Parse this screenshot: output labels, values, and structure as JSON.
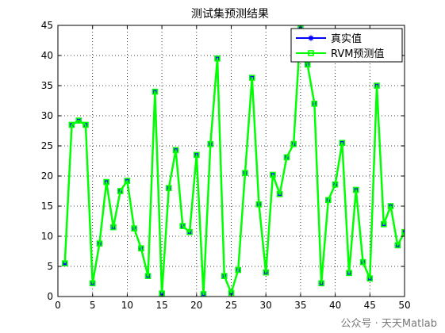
{
  "chart_data": {
    "type": "line",
    "title": "测试集预测结果",
    "xlabel": "",
    "ylabel": "",
    "xlim": [
      0,
      50
    ],
    "ylim": [
      0,
      45
    ],
    "xticks": [
      0,
      5,
      10,
      15,
      20,
      25,
      30,
      35,
      40,
      45,
      50
    ],
    "yticks": [
      0,
      5,
      10,
      15,
      20,
      25,
      30,
      35,
      40,
      45
    ],
    "grid": true,
    "legend_position": "top-right",
    "x": [
      1,
      2,
      3,
      4,
      5,
      6,
      7,
      8,
      9,
      10,
      11,
      12,
      13,
      14,
      15,
      16,
      17,
      18,
      19,
      20,
      21,
      22,
      23,
      24,
      25,
      26,
      27,
      28,
      29,
      30,
      31,
      32,
      33,
      34,
      35,
      36,
      37,
      38,
      39,
      40,
      41,
      42,
      43,
      44,
      45,
      46,
      47,
      48,
      49,
      50
    ],
    "series": [
      {
        "name": "真实值",
        "color": "#0000ff",
        "marker": "star",
        "values": [
          5.5,
          28.5,
          29.2,
          28.5,
          2.2,
          8.8,
          19,
          11.5,
          17.5,
          19.2,
          11.3,
          8,
          3.4,
          34,
          0.5,
          18,
          24.3,
          11.7,
          10.7,
          23.5,
          0.4,
          25.3,
          39.5,
          3.4,
          0.6,
          4.4,
          20.5,
          36.3,
          15.3,
          4,
          20.2,
          17,
          23.1,
          25.3,
          44.5,
          38.5,
          32,
          2.2,
          16,
          18.6,
          25.5,
          3.9,
          17.7,
          5.7,
          3,
          35,
          12,
          15,
          8.5,
          10.7
        ]
      },
      {
        "name": "RVM预测值",
        "color": "#00ff00",
        "marker": "square",
        "values": [
          5.5,
          28.5,
          29.2,
          28.5,
          2.2,
          8.8,
          19,
          11.5,
          17.5,
          19.2,
          11.3,
          8,
          3.4,
          34,
          0.5,
          18,
          24.3,
          11.7,
          10.7,
          23.5,
          0.4,
          25.3,
          39.5,
          3.4,
          0.6,
          4.4,
          20.5,
          36.3,
          15.3,
          4,
          20.2,
          17,
          23.1,
          25.3,
          44.5,
          38.5,
          32,
          2.2,
          16,
          18.6,
          25.5,
          3.9,
          17.7,
          5.7,
          3,
          35,
          12,
          15,
          8.5,
          10.7
        ]
      }
    ]
  },
  "watermark": "公众号 · 天天Matlab"
}
